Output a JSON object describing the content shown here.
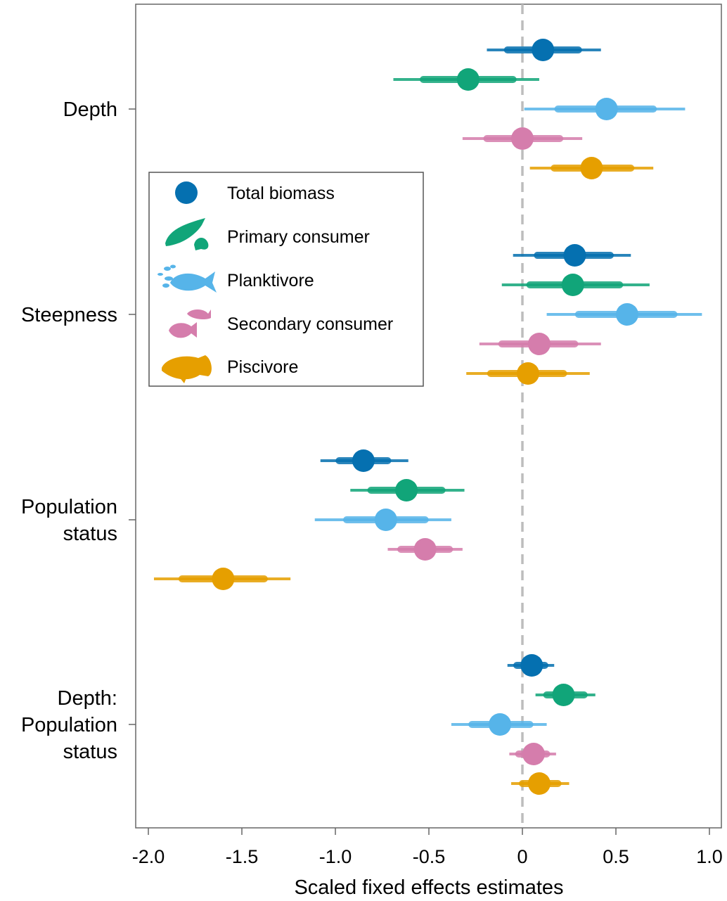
{
  "chart_data": {
    "type": "forest",
    "xlabel": "Scaled fixed effects estimates",
    "ylabel": "",
    "title": "",
    "xlim": [
      -2.1,
      1.05
    ],
    "x_ticks": [
      -2.0,
      -1.5,
      -1.0,
      -0.5,
      0,
      0.5,
      1.0
    ],
    "x_tick_labels": [
      "-2.0",
      "-1.5",
      "-1.0",
      "-0.5",
      "0",
      "0.5",
      "1.0"
    ],
    "reference_line": 0,
    "groups": [
      {
        "label_lines": [
          "Depth"
        ]
      },
      {
        "label_lines": [
          "Steepness"
        ]
      },
      {
        "label_lines": [
          "Population",
          "status"
        ]
      },
      {
        "label_lines": [
          "Depth:",
          "Population",
          "status"
        ]
      }
    ],
    "legend": {
      "position": "top-left",
      "entries": [
        {
          "label": "Total biomass",
          "icon": "circle-marker-icon"
        },
        {
          "label": "Primary consumer",
          "icon": "parrotfish-silhouette-icon"
        },
        {
          "label": "Planktivore",
          "icon": "planktivore-fish-silhouette-icon"
        },
        {
          "label": "Secondary consumer",
          "icon": "wrasse-silhouette-icon"
        },
        {
          "label": "Piscivore",
          "icon": "grouper-silhouette-icon"
        }
      ]
    },
    "series": [
      {
        "name": "Total biomass",
        "color": "#0570b0",
        "estimates": [
          0.11,
          0.28,
          -0.85,
          0.05
        ],
        "inner": [
          [
            -0.08,
            0.3
          ],
          [
            0.08,
            0.47
          ],
          [
            -0.98,
            -0.72
          ],
          [
            -0.03,
            0.12
          ]
        ],
        "outer": [
          [
            -0.19,
            0.42
          ],
          [
            -0.05,
            0.58
          ],
          [
            -1.08,
            -0.61
          ],
          [
            -0.08,
            0.17
          ]
        ]
      },
      {
        "name": "Primary consumer",
        "color": "#11a579",
        "estimates": [
          -0.29,
          0.27,
          -0.62,
          0.22
        ],
        "inner": [
          [
            -0.53,
            -0.05
          ],
          [
            0.04,
            0.52
          ],
          [
            -0.81,
            -0.43
          ],
          [
            0.13,
            0.33
          ]
        ],
        "outer": [
          [
            -0.69,
            0.09
          ],
          [
            -0.11,
            0.68
          ],
          [
            -0.92,
            -0.31
          ],
          [
            0.07,
            0.39
          ]
        ]
      },
      {
        "name": "Planktivore",
        "color": "#56b4e9",
        "estimates": [
          0.45,
          0.56,
          -0.73,
          -0.12
        ],
        "inner": [
          [
            0.19,
            0.7
          ],
          [
            0.3,
            0.81
          ],
          [
            -0.94,
            -0.52
          ],
          [
            -0.27,
            0.04
          ]
        ],
        "outer": [
          [
            0.01,
            0.87
          ],
          [
            0.13,
            0.96
          ],
          [
            -1.11,
            -0.38
          ],
          [
            -0.38,
            0.13
          ]
        ]
      },
      {
        "name": "Secondary consumer",
        "color": "#d57dac",
        "estimates": [
          0.0,
          0.09,
          -0.52,
          0.06
        ],
        "inner": [
          [
            -0.19,
            0.2
          ],
          [
            -0.11,
            0.28
          ],
          [
            -0.65,
            -0.39
          ],
          [
            -0.02,
            0.13
          ]
        ],
        "outer": [
          [
            -0.32,
            0.32
          ],
          [
            -0.23,
            0.42
          ],
          [
            -0.72,
            -0.32
          ],
          [
            -0.07,
            0.18
          ]
        ]
      },
      {
        "name": "Piscivore",
        "color": "#e69f00",
        "estimates": [
          0.37,
          0.03,
          -1.6,
          0.09
        ],
        "inner": [
          [
            0.17,
            0.58
          ],
          [
            -0.17,
            0.22
          ],
          [
            -1.82,
            -1.38
          ],
          [
            0.0,
            0.19
          ]
        ],
        "outer": [
          [
            0.04,
            0.7
          ],
          [
            -0.3,
            0.36
          ],
          [
            -1.97,
            -1.24
          ],
          [
            -0.06,
            0.25
          ]
        ]
      }
    ]
  }
}
